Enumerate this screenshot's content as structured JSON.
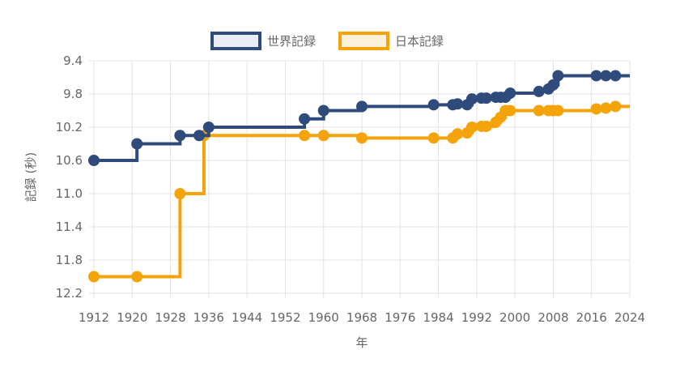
{
  "chart_data": {
    "type": "line",
    "step": "after",
    "xlabel": "年",
    "ylabel": "記録 (秒)",
    "xlim": [
      1912,
      2024
    ],
    "ylim": [
      9.4,
      12.2
    ],
    "y_reversed": true,
    "x_ticks": [
      1912,
      1920,
      1928,
      1936,
      1944,
      1952,
      1960,
      1968,
      1976,
      1984,
      1992,
      2000,
      2008,
      2016,
      2024
    ],
    "y_ticks": [
      9.4,
      9.8,
      10.2,
      10.6,
      11.0,
      11.4,
      11.8,
      12.2
    ],
    "x_tick_labels": [
      "1912",
      "1920",
      "1928",
      "1936",
      "1944",
      "1952",
      "1960",
      "1968",
      "1976",
      "1984",
      "1992",
      "2000",
      "2008",
      "2016",
      "2024"
    ],
    "y_tick_labels": [
      "9.4",
      "9.8",
      "10.2",
      "10.6",
      "11.0",
      "11.4",
      "11.8",
      "12.2"
    ],
    "grid": true,
    "legend_position": "top",
    "series": [
      {
        "name": "世界記録",
        "color": "#2f4b7c",
        "points": [
          [
            1912,
            10.6
          ],
          [
            1921,
            10.4
          ],
          [
            1930,
            10.3
          ],
          [
            1934,
            10.3
          ],
          [
            1936,
            10.2
          ],
          [
            1956,
            10.1
          ],
          [
            1960,
            10.0
          ],
          [
            1968,
            9.95
          ],
          [
            1983,
            9.93
          ],
          [
            1987,
            9.93
          ],
          [
            1988,
            9.92
          ],
          [
            1990,
            9.93
          ],
          [
            1991,
            9.86
          ],
          [
            1993,
            9.85
          ],
          [
            1994,
            9.85
          ],
          [
            1996,
            9.84
          ],
          [
            1997,
            9.84
          ],
          [
            1998,
            9.84
          ],
          [
            1999,
            9.79
          ],
          [
            2005,
            9.77
          ],
          [
            2007,
            9.74
          ],
          [
            2008,
            9.69
          ],
          [
            2009,
            9.58
          ],
          [
            2017,
            9.58
          ],
          [
            2019,
            9.58
          ],
          [
            2021,
            9.58
          ]
        ],
        "extend_to": 2024
      },
      {
        "name": "日本記録",
        "color": "#f5a30a",
        "points": [
          [
            1912,
            12.0
          ],
          [
            1921,
            12.0
          ],
          [
            1930,
            11.0
          ],
          [
            1935,
            10.3
          ],
          [
            1956,
            10.3
          ],
          [
            1960,
            10.3
          ],
          [
            1968,
            10.33
          ],
          [
            1983,
            10.33
          ],
          [
            1987,
            10.33
          ],
          [
            1988,
            10.28
          ],
          [
            1990,
            10.27
          ],
          [
            1991,
            10.2
          ],
          [
            1993,
            10.19
          ],
          [
            1994,
            10.19
          ],
          [
            1996,
            10.14
          ],
          [
            1997,
            10.08
          ],
          [
            1998,
            10.0
          ],
          [
            1999,
            10.0
          ],
          [
            2005,
            10.0
          ],
          [
            2007,
            10.0
          ],
          [
            2008,
            10.0
          ],
          [
            2009,
            10.0
          ],
          [
            2017,
            9.98
          ],
          [
            2019,
            9.97
          ],
          [
            2021,
            9.95
          ]
        ],
        "extend_to": 2024
      }
    ]
  }
}
